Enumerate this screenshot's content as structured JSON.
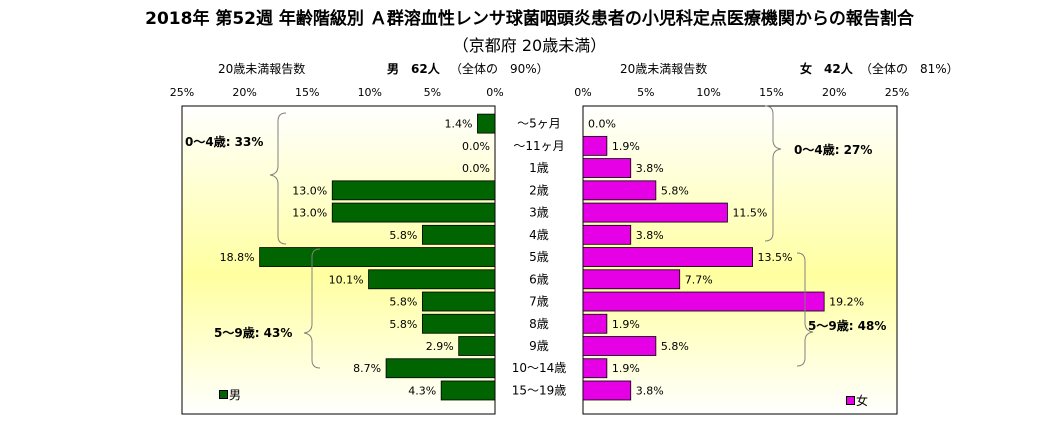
{
  "title": "2018年 第52週 年齢階級別 Ａ群溶血性レンサ球菌咽頭炎患者の小児科定点医療機関からの報告割合",
  "subtitle": "（京都府 20歳未満）",
  "left_header": {
    "caption": "20歳未満報告数",
    "sex_count": "男　62人",
    "share": "（全体の　90%）"
  },
  "right_header": {
    "caption": "20歳未満報告数",
    "sex_count": "女　42人",
    "share": "（全体の　81%）"
  },
  "notes": {
    "male_0_4": "0～4歳: 33%",
    "male_5_9": "5～9歳: 43%",
    "female_0_4": "0～4歳: 27%",
    "female_5_9": "5～9歳: 48%"
  },
  "colors": {
    "male": "#006400",
    "female": "#E600E6",
    "plot_bg_light": "#FFFFFF",
    "plot_bg_yellow": "#FFFF99"
  },
  "chart_data": {
    "type": "bar",
    "orientation": "horizontal-population-pyramid",
    "categories": [
      "～5ヶ月",
      "～11ヶ月",
      "1歳",
      "2歳",
      "3歳",
      "4歳",
      "5歳",
      "6歳",
      "7歳",
      "8歳",
      "9歳",
      "10～14歳",
      "15～19歳"
    ],
    "series": [
      {
        "name": "男",
        "side": "left",
        "values": [
          1.4,
          0.0,
          0.0,
          13.0,
          13.0,
          5.8,
          18.8,
          10.1,
          5.8,
          5.8,
          2.9,
          8.7,
          4.3
        ],
        "labels": [
          "1.4%",
          "0.0%",
          "0.0%",
          "13.0%",
          "13.0%",
          "5.8%",
          "18.8%",
          "10.1%",
          "5.8%",
          "5.8%",
          "2.9%",
          "8.7%",
          "4.3%"
        ]
      },
      {
        "name": "女",
        "side": "right",
        "values": [
          0.0,
          1.9,
          3.8,
          5.8,
          11.5,
          3.8,
          13.5,
          7.7,
          19.2,
          1.9,
          5.8,
          1.9,
          3.8
        ],
        "labels": [
          "0.0%",
          "1.9%",
          "3.8%",
          "5.8%",
          "11.5%",
          "3.8%",
          "13.5%",
          "7.7%",
          "19.2%",
          "1.9%",
          "5.8%",
          "1.9%",
          "3.8%"
        ]
      }
    ],
    "xlim": [
      0,
      25
    ],
    "ticks": [
      "0%",
      "5%",
      "10%",
      "15%",
      "20%",
      "25%"
    ],
    "left_ticks": [
      "25%",
      "20%",
      "15%",
      "10%",
      "5%",
      "0%"
    ],
    "legend": [
      "男",
      "女"
    ],
    "legend_placement": "bottom-left / bottom-right",
    "grid": false
  }
}
